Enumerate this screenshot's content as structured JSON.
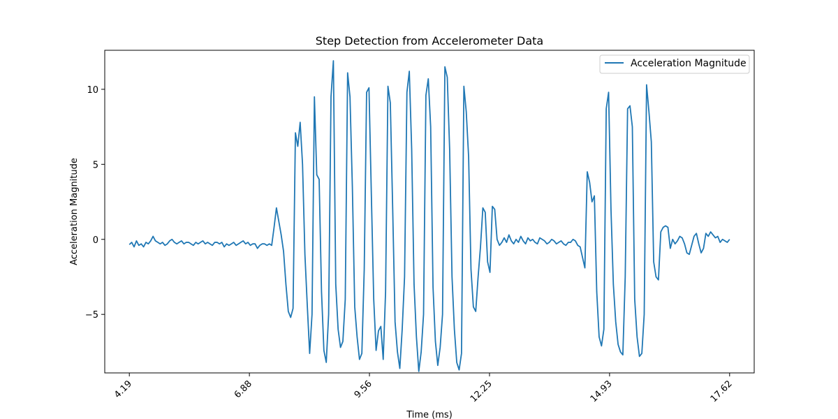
{
  "chart_data": {
    "type": "line",
    "title": "Step Detection from Accelerometer Data",
    "xlabel": "Time (ms)",
    "ylabel": "Acceleration Magnitude",
    "xlim": [
      3.64,
      18.17
    ],
    "ylim": [
      -8.9,
      12.6
    ],
    "x_tick_labels": [
      "4.19",
      "6.88",
      "9.56",
      "12.25",
      "14.93",
      "17.62"
    ],
    "y_ticks": [
      -5,
      0,
      5,
      10
    ],
    "y_tick_labels": [
      "−5",
      "0",
      "5",
      "10"
    ],
    "grid": false,
    "legend_position": "top-right",
    "line_color": "#1f77b4",
    "series": [
      {
        "name": "Acceleration Magnitude",
        "x_start": 4.19,
        "x_end": 17.62,
        "values": [
          -0.35,
          -0.2,
          -0.5,
          -0.1,
          -0.4,
          -0.3,
          -0.5,
          -0.2,
          -0.3,
          -0.1,
          0.2,
          -0.1,
          -0.2,
          -0.3,
          -0.2,
          -0.4,
          -0.3,
          -0.1,
          0.0,
          -0.2,
          -0.3,
          -0.2,
          -0.1,
          -0.3,
          -0.2,
          -0.2,
          -0.3,
          -0.4,
          -0.2,
          -0.3,
          -0.2,
          -0.1,
          -0.3,
          -0.2,
          -0.3,
          -0.4,
          -0.2,
          -0.2,
          -0.3,
          -0.2,
          -0.5,
          -0.3,
          -0.4,
          -0.3,
          -0.2,
          -0.4,
          -0.3,
          -0.2,
          -0.1,
          -0.3,
          -0.2,
          -0.4,
          -0.3,
          -0.3,
          -0.6,
          -0.4,
          -0.3,
          -0.3,
          -0.4,
          -0.3,
          -0.4,
          0.8,
          2.1,
          1.2,
          0.3,
          -0.8,
          -3.0,
          -4.8,
          -5.2,
          -4.6,
          7.1,
          6.2,
          7.8,
          5.0,
          -1.0,
          -4.4,
          -7.6,
          -5.0,
          9.5,
          4.3,
          4.0,
          -3.5,
          -7.4,
          -8.2,
          -5.0,
          9.5,
          11.9,
          -3.0,
          -6.0,
          -7.2,
          -6.8,
          -4.0,
          11.1,
          9.5,
          3.5,
          -4.5,
          -6.5,
          -8.0,
          -7.6,
          -2.0,
          9.8,
          10.1,
          3.0,
          -4.0,
          -7.4,
          -6.1,
          -5.8,
          -8.0,
          -3.5,
          10.2,
          9.1,
          2.0,
          -5.5,
          -7.5,
          -8.6,
          -6.0,
          -2.5,
          9.8,
          11.2,
          6.0,
          -3.0,
          -6.5,
          -8.8,
          -7.5,
          -5.0,
          9.6,
          10.7,
          7.5,
          -3.2,
          -6.8,
          -8.4,
          -7.2,
          -5.0,
          11.5,
          10.8,
          6.0,
          -2.5,
          -6.0,
          -8.2,
          -8.7,
          -7.6,
          10.2,
          8.5,
          5.5,
          -2.0,
          -4.5,
          -4.8,
          -2.5,
          -0.5,
          2.1,
          1.8,
          -1.5,
          -2.2,
          2.2,
          2.0,
          0.0,
          -0.4,
          -0.2,
          0.1,
          -0.2,
          0.3,
          -0.1,
          -0.3,
          0.0,
          -0.2,
          0.2,
          -0.1,
          -0.3,
          0.1,
          -0.1,
          0.0,
          -0.2,
          -0.3,
          0.1,
          0.0,
          -0.1,
          -0.3,
          -0.2,
          0.0,
          -0.1,
          -0.3,
          -0.2,
          -0.1,
          -0.3,
          -0.4,
          -0.2,
          -0.2,
          0.0,
          -0.1,
          -0.4,
          -0.5,
          -1.2,
          -1.9,
          4.5,
          3.8,
          2.5,
          2.9,
          -3.5,
          -6.5,
          -7.1,
          -6.0,
          8.7,
          9.8,
          2.0,
          -3.0,
          -5.5,
          -7.0,
          -7.5,
          -7.7,
          -2.5,
          8.7,
          8.9,
          7.5,
          -4.0,
          -6.5,
          -7.8,
          -7.6,
          -5.0,
          10.3,
          8.5,
          6.5,
          -1.5,
          -2.5,
          -2.7,
          0.5,
          0.8,
          0.9,
          0.8,
          -0.6,
          0.0,
          -0.3,
          -0.1,
          0.2,
          0.1,
          -0.3,
          -0.9,
          -1.0,
          -0.4,
          0.2,
          0.4,
          -0.3,
          -0.9,
          -0.6,
          0.4,
          0.2,
          0.5,
          0.3,
          0.1,
          0.2,
          -0.2,
          0.0,
          -0.1,
          -0.2,
          0.0
        ]
      }
    ]
  }
}
